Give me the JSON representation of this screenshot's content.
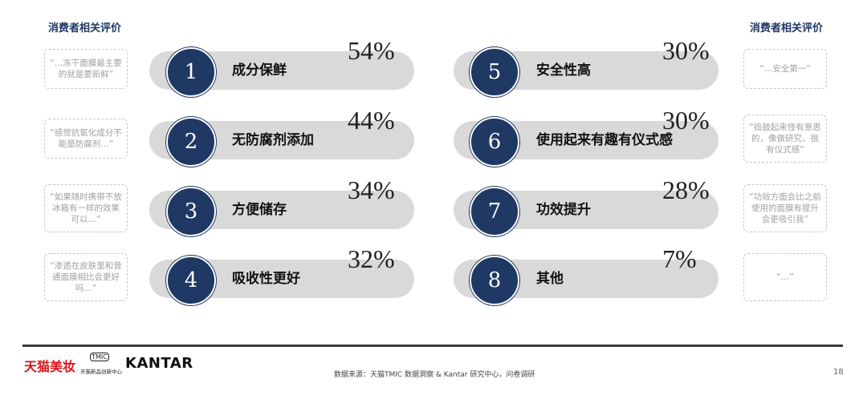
{
  "headers": {
    "left": "消费者相关评价",
    "right": "消费者相关评价"
  },
  "items": [
    {
      "rank": "1",
      "label": "成分保鲜",
      "value": "54%",
      "quote": "“…冻干面膜最主要的就是要新鲜”"
    },
    {
      "rank": "2",
      "label": "无防腐剂添加",
      "value": "44%",
      "quote": "“感觉抗氧化成分不能是防腐剂…”"
    },
    {
      "rank": "3",
      "label": "方便储存",
      "value": "34%",
      "quote": "“如果随时携带不放冰箱有一样的效果可以…”"
    },
    {
      "rank": "4",
      "label": "吸收性更好",
      "value": "32%",
      "quote": "“渗透在皮肤里和普通面膜相比会更好吗…”"
    },
    {
      "rank": "5",
      "label": "安全性高",
      "value": "30%",
      "quote": "“…安全第一”"
    },
    {
      "rank": "6",
      "label": "使用起来有趣有仪式感",
      "value": "30%",
      "quote": "“捣鼓起来怪有意思的，像做研究，很有仪式感”"
    },
    {
      "rank": "7",
      "label": "功效提升",
      "value": "28%",
      "quote": "“功效方面会比之前使用的面膜有提升会更吸引我”"
    },
    {
      "rank": "8",
      "label": "其他",
      "value": "7%",
      "quote": "“…”"
    }
  ],
  "footer": {
    "logos": [
      "天猫美妆",
      "TMIC",
      "天猫新品创新中心",
      "KANTAR"
    ],
    "source": "数据来源：天猫TMIC 数据洞察 & Kantar 研究中心，问卷调研",
    "page": "18"
  }
}
